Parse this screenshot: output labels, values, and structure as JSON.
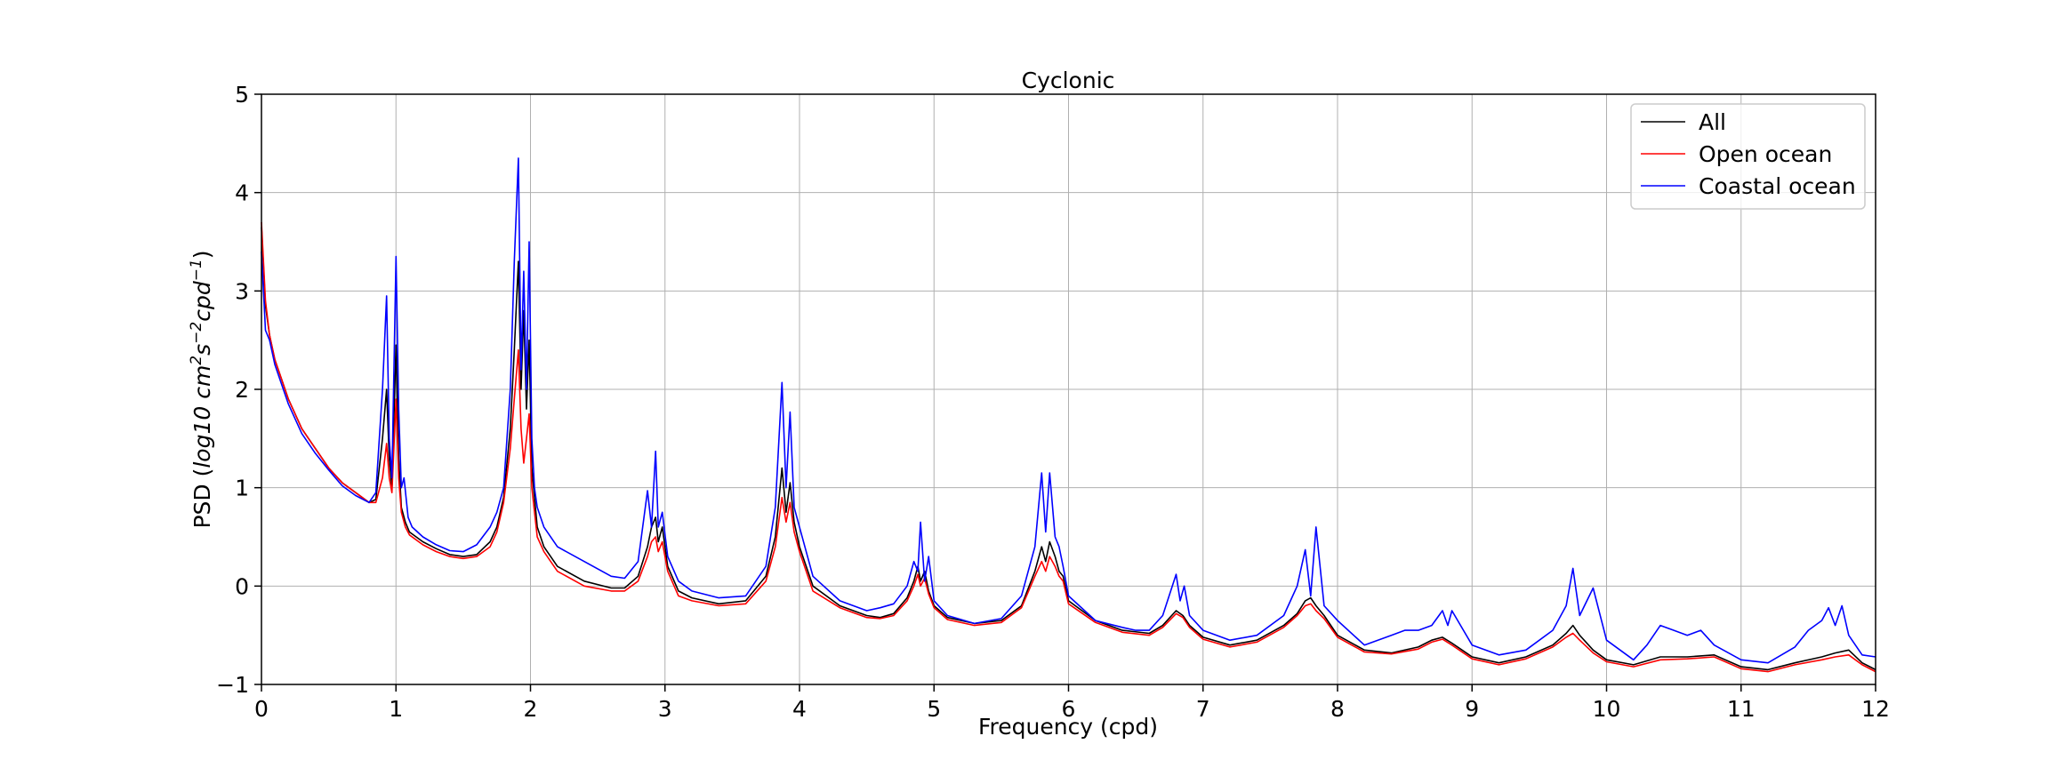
{
  "chart_data": {
    "type": "line",
    "title": "Cyclonic",
    "xlabel": "Frequency (cpd)",
    "ylabel_main": "PSD (",
    "ylabel_italic": "log10 cm",
    "ylabel_sup1": "2",
    "ylabel_mid": "s",
    "ylabel_sup2": "−2",
    "ylabel_cpd": "cpd",
    "ylabel_sup3": "−1",
    "ylabel_close": ")",
    "xlim": [
      0,
      12
    ],
    "ylim": [
      -1,
      5
    ],
    "xticks": [
      "0",
      "1",
      "2",
      "3",
      "4",
      "5",
      "6",
      "7",
      "8",
      "9",
      "10",
      "11",
      "12"
    ],
    "yticks": [
      "−1",
      "0",
      "1",
      "2",
      "3",
      "4",
      "5"
    ],
    "grid": true,
    "legend_position": "top-right",
    "series": [
      {
        "name": "All",
        "color": "#000000",
        "x": [
          0,
          0.03,
          0.06,
          0.1,
          0.15,
          0.2,
          0.3,
          0.4,
          0.5,
          0.6,
          0.7,
          0.8,
          0.85,
          0.9,
          0.93,
          0.95,
          0.97,
          1.0,
          1.02,
          1.04,
          1.07,
          1.1,
          1.2,
          1.3,
          1.4,
          1.5,
          1.6,
          1.7,
          1.75,
          1.8,
          1.85,
          1.88,
          1.91,
          1.93,
          1.95,
          1.97,
          1.99,
          2.01,
          2.05,
          2.1,
          2.2,
          2.4,
          2.6,
          2.7,
          2.8,
          2.87,
          2.9,
          2.93,
          2.95,
          2.98,
          3.02,
          3.1,
          3.2,
          3.4,
          3.6,
          3.75,
          3.82,
          3.87,
          3.9,
          3.93,
          3.96,
          4.0,
          4.1,
          4.3,
          4.5,
          4.6,
          4.7,
          4.8,
          4.85,
          4.88,
          4.9,
          4.93,
          4.96,
          5.0,
          5.1,
          5.3,
          5.5,
          5.65,
          5.75,
          5.8,
          5.83,
          5.86,
          5.9,
          5.93,
          5.96,
          6.0,
          6.2,
          6.4,
          6.6,
          6.7,
          6.8,
          6.85,
          6.9,
          7.0,
          7.2,
          7.4,
          7.6,
          7.7,
          7.76,
          7.8,
          7.84,
          7.9,
          8.0,
          8.2,
          8.4,
          8.6,
          8.7,
          8.78,
          8.85,
          9.0,
          9.2,
          9.4,
          9.6,
          9.7,
          9.75,
          9.8,
          9.9,
          10.0,
          10.2,
          10.4,
          10.6,
          10.8,
          11.0,
          11.2,
          11.4,
          11.6,
          11.7,
          11.8,
          11.9,
          12.0
        ],
        "y": [
          3.65,
          2.85,
          2.55,
          2.3,
          2.1,
          1.9,
          1.6,
          1.4,
          1.2,
          1.05,
          0.95,
          0.85,
          0.88,
          1.5,
          2.0,
          1.3,
          1.0,
          2.45,
          1.3,
          0.8,
          0.65,
          0.55,
          0.45,
          0.38,
          0.32,
          0.3,
          0.32,
          0.45,
          0.6,
          0.9,
          1.6,
          2.4,
          3.3,
          2.0,
          2.8,
          1.8,
          2.5,
          1.2,
          0.6,
          0.4,
          0.2,
          0.05,
          -0.02,
          -0.02,
          0.1,
          0.4,
          0.6,
          0.7,
          0.45,
          0.6,
          0.2,
          -0.05,
          -0.12,
          -0.18,
          -0.15,
          0.1,
          0.5,
          1.2,
          0.75,
          1.05,
          0.65,
          0.4,
          0.0,
          -0.2,
          -0.3,
          -0.32,
          -0.28,
          -0.12,
          0.05,
          0.2,
          0.05,
          0.15,
          -0.05,
          -0.2,
          -0.32,
          -0.38,
          -0.35,
          -0.2,
          0.15,
          0.4,
          0.25,
          0.45,
          0.3,
          0.15,
          0.1,
          -0.15,
          -0.35,
          -0.45,
          -0.48,
          -0.4,
          -0.25,
          -0.3,
          -0.4,
          -0.52,
          -0.6,
          -0.55,
          -0.4,
          -0.28,
          -0.15,
          -0.12,
          -0.2,
          -0.3,
          -0.5,
          -0.65,
          -0.68,
          -0.62,
          -0.55,
          -0.52,
          -0.58,
          -0.72,
          -0.78,
          -0.72,
          -0.6,
          -0.48,
          -0.4,
          -0.5,
          -0.65,
          -0.75,
          -0.8,
          -0.72,
          -0.72,
          -0.7,
          -0.82,
          -0.85,
          -0.78,
          -0.72,
          -0.68,
          -0.65,
          -0.78,
          -0.85
        ]
      },
      {
        "name": "Open ocean",
        "color": "#ff0000",
        "x": [
          0,
          0.03,
          0.06,
          0.1,
          0.15,
          0.2,
          0.3,
          0.4,
          0.5,
          0.6,
          0.7,
          0.8,
          0.85,
          0.9,
          0.93,
          0.95,
          0.97,
          1.0,
          1.02,
          1.04,
          1.07,
          1.1,
          1.2,
          1.3,
          1.4,
          1.5,
          1.6,
          1.7,
          1.75,
          1.8,
          1.85,
          1.88,
          1.91,
          1.93,
          1.95,
          1.97,
          1.99,
          2.01,
          2.05,
          2.1,
          2.2,
          2.4,
          2.6,
          2.7,
          2.8,
          2.87,
          2.9,
          2.93,
          2.95,
          2.98,
          3.02,
          3.1,
          3.2,
          3.4,
          3.6,
          3.75,
          3.82,
          3.87,
          3.9,
          3.93,
          3.96,
          4.0,
          4.1,
          4.3,
          4.5,
          4.6,
          4.7,
          4.8,
          4.85,
          4.88,
          4.9,
          4.93,
          4.96,
          5.0,
          5.1,
          5.3,
          5.5,
          5.65,
          5.75,
          5.8,
          5.83,
          5.86,
          5.9,
          5.93,
          5.96,
          6.0,
          6.2,
          6.4,
          6.6,
          6.7,
          6.8,
          6.85,
          6.9,
          7.0,
          7.2,
          7.4,
          7.6,
          7.7,
          7.76,
          7.8,
          7.84,
          7.9,
          8.0,
          8.2,
          8.4,
          8.6,
          8.7,
          8.78,
          8.85,
          9.0,
          9.2,
          9.4,
          9.6,
          9.7,
          9.75,
          9.8,
          9.9,
          10.0,
          10.2,
          10.4,
          10.6,
          10.8,
          11.0,
          11.2,
          11.4,
          11.6,
          11.7,
          11.8,
          11.9,
          12.0
        ],
        "y": [
          3.7,
          2.9,
          2.55,
          2.3,
          2.1,
          1.9,
          1.6,
          1.4,
          1.2,
          1.05,
          0.95,
          0.85,
          0.85,
          1.1,
          1.45,
          1.1,
          0.95,
          1.9,
          1.1,
          0.75,
          0.6,
          0.52,
          0.42,
          0.35,
          0.3,
          0.28,
          0.3,
          0.4,
          0.55,
          0.85,
          1.4,
          1.9,
          2.4,
          1.6,
          1.25,
          1.5,
          1.75,
          1.0,
          0.5,
          0.35,
          0.15,
          0.0,
          -0.05,
          -0.05,
          0.05,
          0.3,
          0.45,
          0.5,
          0.35,
          0.45,
          0.15,
          -0.1,
          -0.15,
          -0.2,
          -0.18,
          0.05,
          0.4,
          0.9,
          0.65,
          0.85,
          0.55,
          0.35,
          -0.05,
          -0.22,
          -0.32,
          -0.33,
          -0.3,
          -0.15,
          0.0,
          0.12,
          0.0,
          0.08,
          -0.08,
          -0.22,
          -0.34,
          -0.4,
          -0.37,
          -0.22,
          0.1,
          0.25,
          0.15,
          0.3,
          0.2,
          0.1,
          0.05,
          -0.18,
          -0.37,
          -0.47,
          -0.5,
          -0.42,
          -0.28,
          -0.32,
          -0.42,
          -0.54,
          -0.62,
          -0.57,
          -0.42,
          -0.3,
          -0.2,
          -0.18,
          -0.25,
          -0.33,
          -0.52,
          -0.67,
          -0.69,
          -0.64,
          -0.57,
          -0.54,
          -0.6,
          -0.74,
          -0.8,
          -0.74,
          -0.62,
          -0.52,
          -0.48,
          -0.55,
          -0.68,
          -0.77,
          -0.82,
          -0.75,
          -0.74,
          -0.72,
          -0.84,
          -0.87,
          -0.8,
          -0.75,
          -0.72,
          -0.7,
          -0.8,
          -0.87
        ]
      },
      {
        "name": "Coastal ocean",
        "color": "#0000ff",
        "x": [
          0,
          0.03,
          0.06,
          0.1,
          0.15,
          0.2,
          0.3,
          0.4,
          0.5,
          0.6,
          0.7,
          0.8,
          0.85,
          0.9,
          0.93,
          0.95,
          0.97,
          1.0,
          1.02,
          1.04,
          1.06,
          1.09,
          1.12,
          1.2,
          1.3,
          1.4,
          1.5,
          1.6,
          1.7,
          1.75,
          1.8,
          1.85,
          1.88,
          1.91,
          1.93,
          1.95,
          1.97,
          1.99,
          2.01,
          2.03,
          2.05,
          2.1,
          2.2,
          2.4,
          2.6,
          2.7,
          2.8,
          2.87,
          2.9,
          2.93,
          2.95,
          2.98,
          3.02,
          3.1,
          3.2,
          3.4,
          3.6,
          3.75,
          3.82,
          3.87,
          3.9,
          3.93,
          3.96,
          4.0,
          4.1,
          4.3,
          4.5,
          4.6,
          4.7,
          4.8,
          4.85,
          4.88,
          4.9,
          4.93,
          4.96,
          5.0,
          5.1,
          5.3,
          5.5,
          5.65,
          5.75,
          5.8,
          5.83,
          5.86,
          5.9,
          5.93,
          5.96,
          6.0,
          6.2,
          6.4,
          6.5,
          6.6,
          6.7,
          6.8,
          6.83,
          6.86,
          6.9,
          7.0,
          7.2,
          7.4,
          7.6,
          7.7,
          7.76,
          7.8,
          7.84,
          7.9,
          8.0,
          8.2,
          8.4,
          8.5,
          8.6,
          8.7,
          8.78,
          8.82,
          8.85,
          9.0,
          9.2,
          9.4,
          9.6,
          9.7,
          9.75,
          9.8,
          9.9,
          10.0,
          10.2,
          10.3,
          10.4,
          10.5,
          10.6,
          10.7,
          10.8,
          11.0,
          11.2,
          11.4,
          11.5,
          11.6,
          11.65,
          11.7,
          11.75,
          11.8,
          11.9,
          12.0
        ],
        "y": [
          3.4,
          2.6,
          2.5,
          2.25,
          2.05,
          1.85,
          1.55,
          1.35,
          1.18,
          1.02,
          0.92,
          0.85,
          0.95,
          2.0,
          2.95,
          1.5,
          1.1,
          3.35,
          1.8,
          1.0,
          1.1,
          0.7,
          0.6,
          0.5,
          0.42,
          0.36,
          0.35,
          0.42,
          0.6,
          0.75,
          1.0,
          2.0,
          3.3,
          4.35,
          2.2,
          3.2,
          2.0,
          3.5,
          1.5,
          1.0,
          0.8,
          0.6,
          0.4,
          0.25,
          0.1,
          0.08,
          0.25,
          0.97,
          0.6,
          1.37,
          0.6,
          0.75,
          0.3,
          0.05,
          -0.05,
          -0.12,
          -0.1,
          0.2,
          0.8,
          2.07,
          1.0,
          1.77,
          0.8,
          0.6,
          0.1,
          -0.15,
          -0.25,
          -0.22,
          -0.18,
          0.0,
          0.25,
          0.15,
          0.65,
          0.05,
          0.3,
          -0.15,
          -0.3,
          -0.38,
          -0.33,
          -0.1,
          0.4,
          1.15,
          0.55,
          1.15,
          0.5,
          0.4,
          0.2,
          -0.1,
          -0.35,
          -0.42,
          -0.45,
          -0.45,
          -0.3,
          0.12,
          -0.15,
          0.0,
          -0.3,
          -0.45,
          -0.55,
          -0.5,
          -0.3,
          0.0,
          0.37,
          -0.1,
          0.6,
          -0.2,
          -0.35,
          -0.6,
          -0.5,
          -0.45,
          -0.45,
          -0.4,
          -0.25,
          -0.4,
          -0.25,
          -0.6,
          -0.7,
          -0.65,
          -0.45,
          -0.2,
          0.18,
          -0.3,
          -0.02,
          -0.55,
          -0.75,
          -0.6,
          -0.4,
          -0.45,
          -0.5,
          -0.45,
          -0.6,
          -0.75,
          -0.78,
          -0.62,
          -0.45,
          -0.35,
          -0.22,
          -0.4,
          -0.2,
          -0.5,
          -0.7,
          -0.72
        ]
      }
    ]
  }
}
